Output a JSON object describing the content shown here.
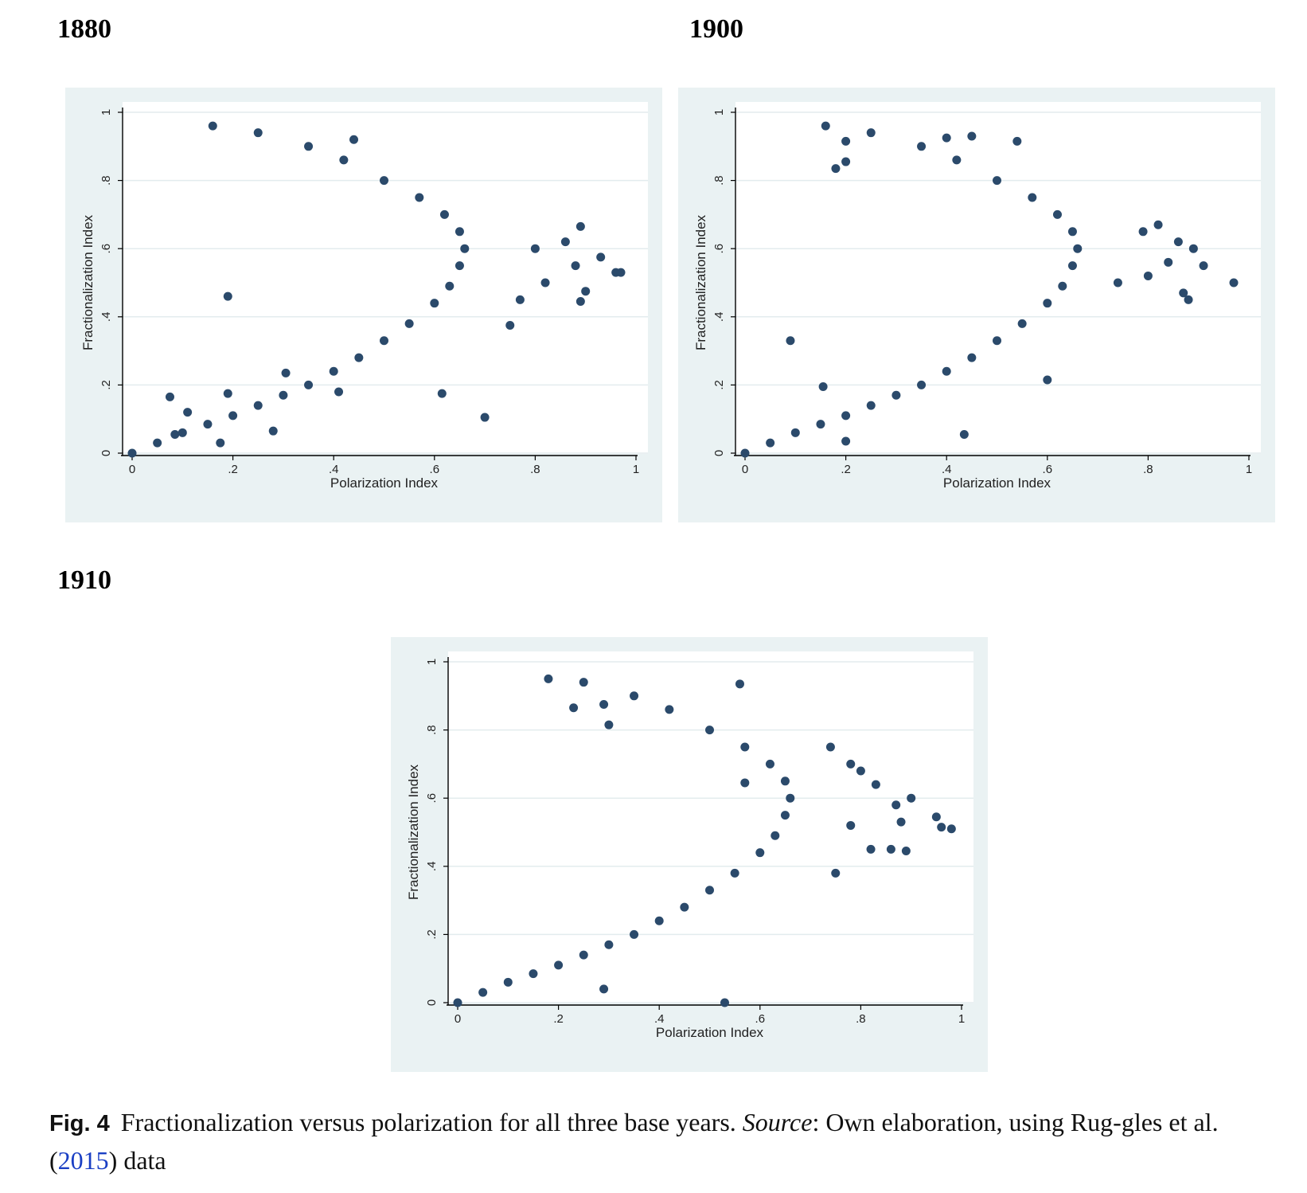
{
  "panels": [
    {
      "year_label": "1880",
      "xlabel": "Polarization Index",
      "ylabel": "Fractionalization Index"
    },
    {
      "year_label": "1900",
      "xlabel": "Polarization Index",
      "ylabel": "Fractionalization Index"
    },
    {
      "year_label": "1910",
      "xlabel": "Polarization Index",
      "ylabel": "Fractionalization Index"
    }
  ],
  "caption": {
    "fig_label": "Fig. 4",
    "text_before": "Fractionalization versus polarization for all three base years. ",
    "source_word": "Source",
    "text_middle": ": Own elaboration, using Rug-gles et al. (",
    "cite_year": "2015",
    "text_after": ") data"
  },
  "colors": {
    "marker": "#2b4a6b",
    "panel_background": "#eaf2f3",
    "plot_background": "#ffffff",
    "gridline": "#e3ecee"
  },
  "chart_data": [
    {
      "type": "scatter",
      "title": "1880",
      "xlabel": "Polarization Index",
      "ylabel": "Fractionalization Index",
      "xlim": [
        0,
        1
      ],
      "ylim": [
        0,
        1
      ],
      "xticks": [
        0,
        0.2,
        0.4,
        0.6,
        0.8,
        1
      ],
      "xtick_labels": [
        "0",
        ".2",
        ".4",
        ".6",
        ".8",
        "1"
      ],
      "yticks": [
        0,
        0.2,
        0.4,
        0.6,
        0.8,
        1
      ],
      "ytick_labels": [
        "0",
        ".2",
        ".4",
        ".6",
        ".8",
        "1"
      ],
      "grid": true,
      "series": [
        {
          "values": [
            {
              "x": 0.0,
              "y": 0.0
            },
            {
              "x": 0.05,
              "y": 0.03
            },
            {
              "x": 0.1,
              "y": 0.06
            },
            {
              "x": 0.15,
              "y": 0.085
            },
            {
              "x": 0.2,
              "y": 0.11
            },
            {
              "x": 0.25,
              "y": 0.14
            },
            {
              "x": 0.3,
              "y": 0.17
            },
            {
              "x": 0.35,
              "y": 0.2
            },
            {
              "x": 0.4,
              "y": 0.24
            },
            {
              "x": 0.45,
              "y": 0.28
            },
            {
              "x": 0.5,
              "y": 0.33
            },
            {
              "x": 0.55,
              "y": 0.38
            },
            {
              "x": 0.6,
              "y": 0.44
            },
            {
              "x": 0.63,
              "y": 0.49
            },
            {
              "x": 0.65,
              "y": 0.55
            },
            {
              "x": 0.66,
              "y": 0.6
            },
            {
              "x": 0.65,
              "y": 0.65
            },
            {
              "x": 0.62,
              "y": 0.7
            },
            {
              "x": 0.57,
              "y": 0.75
            },
            {
              "x": 0.5,
              "y": 0.8
            },
            {
              "x": 0.42,
              "y": 0.86
            },
            {
              "x": 0.35,
              "y": 0.9
            },
            {
              "x": 0.25,
              "y": 0.94
            },
            {
              "x": 0.16,
              "y": 0.96
            },
            {
              "x": 0.44,
              "y": 0.92
            },
            {
              "x": 0.19,
              "y": 0.46
            },
            {
              "x": 0.075,
              "y": 0.165
            },
            {
              "x": 0.19,
              "y": 0.175
            },
            {
              "x": 0.11,
              "y": 0.12
            },
            {
              "x": 0.085,
              "y": 0.055
            },
            {
              "x": 0.175,
              "y": 0.03
            },
            {
              "x": 0.28,
              "y": 0.065
            },
            {
              "x": 0.305,
              "y": 0.235
            },
            {
              "x": 0.41,
              "y": 0.18
            },
            {
              "x": 0.615,
              "y": 0.175
            },
            {
              "x": 0.7,
              "y": 0.105
            },
            {
              "x": 0.75,
              "y": 0.375
            },
            {
              "x": 0.77,
              "y": 0.45
            },
            {
              "x": 0.8,
              "y": 0.6
            },
            {
              "x": 0.89,
              "y": 0.665
            },
            {
              "x": 0.88,
              "y": 0.55
            },
            {
              "x": 0.9,
              "y": 0.475
            },
            {
              "x": 0.89,
              "y": 0.445
            },
            {
              "x": 0.93,
              "y": 0.575
            },
            {
              "x": 0.96,
              "y": 0.53
            },
            {
              "x": 0.97,
              "y": 0.53
            },
            {
              "x": 0.82,
              "y": 0.5
            },
            {
              "x": 0.86,
              "y": 0.62
            }
          ]
        }
      ]
    },
    {
      "type": "scatter",
      "title": "1900",
      "xlabel": "Polarization Index",
      "ylabel": "Fractionalization Index",
      "xlim": [
        0,
        1
      ],
      "ylim": [
        0,
        1
      ],
      "xticks": [
        0,
        0.2,
        0.4,
        0.6,
        0.8,
        1
      ],
      "xtick_labels": [
        "0",
        ".2",
        ".4",
        ".6",
        ".8",
        "1"
      ],
      "yticks": [
        0,
        0.2,
        0.4,
        0.6,
        0.8,
        1
      ],
      "ytick_labels": [
        "0",
        ".2",
        ".4",
        ".6",
        ".8",
        "1"
      ],
      "grid": true,
      "series": [
        {
          "values": [
            {
              "x": 0.0,
              "y": 0.0
            },
            {
              "x": 0.05,
              "y": 0.03
            },
            {
              "x": 0.1,
              "y": 0.06
            },
            {
              "x": 0.15,
              "y": 0.085
            },
            {
              "x": 0.2,
              "y": 0.11
            },
            {
              "x": 0.25,
              "y": 0.14
            },
            {
              "x": 0.3,
              "y": 0.17
            },
            {
              "x": 0.35,
              "y": 0.2
            },
            {
              "x": 0.4,
              "y": 0.24
            },
            {
              "x": 0.45,
              "y": 0.28
            },
            {
              "x": 0.5,
              "y": 0.33
            },
            {
              "x": 0.55,
              "y": 0.38
            },
            {
              "x": 0.6,
              "y": 0.44
            },
            {
              "x": 0.63,
              "y": 0.49
            },
            {
              "x": 0.65,
              "y": 0.55
            },
            {
              "x": 0.66,
              "y": 0.6
            },
            {
              "x": 0.65,
              "y": 0.65
            },
            {
              "x": 0.62,
              "y": 0.7
            },
            {
              "x": 0.57,
              "y": 0.75
            },
            {
              "x": 0.5,
              "y": 0.8
            },
            {
              "x": 0.42,
              "y": 0.86
            },
            {
              "x": 0.35,
              "y": 0.9
            },
            {
              "x": 0.25,
              "y": 0.94
            },
            {
              "x": 0.16,
              "y": 0.96
            },
            {
              "x": 0.4,
              "y": 0.925
            },
            {
              "x": 0.45,
              "y": 0.93
            },
            {
              "x": 0.54,
              "y": 0.915
            },
            {
              "x": 0.2,
              "y": 0.915
            },
            {
              "x": 0.2,
              "y": 0.855
            },
            {
              "x": 0.18,
              "y": 0.835
            },
            {
              "x": 0.09,
              "y": 0.33
            },
            {
              "x": 0.155,
              "y": 0.195
            },
            {
              "x": 0.2,
              "y": 0.035
            },
            {
              "x": 0.435,
              "y": 0.055
            },
            {
              "x": 0.6,
              "y": 0.215
            },
            {
              "x": 0.74,
              "y": 0.5
            },
            {
              "x": 0.79,
              "y": 0.65
            },
            {
              "x": 0.82,
              "y": 0.67
            },
            {
              "x": 0.86,
              "y": 0.62
            },
            {
              "x": 0.87,
              "y": 0.47
            },
            {
              "x": 0.88,
              "y": 0.45
            },
            {
              "x": 0.89,
              "y": 0.6
            },
            {
              "x": 0.91,
              "y": 0.55
            },
            {
              "x": 0.97,
              "y": 0.5
            },
            {
              "x": 0.84,
              "y": 0.56
            },
            {
              "x": 0.8,
              "y": 0.52
            }
          ]
        }
      ]
    },
    {
      "type": "scatter",
      "title": "1910",
      "xlabel": "Polarization Index",
      "ylabel": "Fractionalization Index",
      "xlim": [
        0,
        1
      ],
      "ylim": [
        0,
        1
      ],
      "xticks": [
        0,
        0.2,
        0.4,
        0.6,
        0.8,
        1
      ],
      "xtick_labels": [
        "0",
        ".2",
        ".4",
        ".6",
        ".8",
        "1"
      ],
      "yticks": [
        0,
        0.2,
        0.4,
        0.6,
        0.8,
        1
      ],
      "ytick_labels": [
        "0",
        ".2",
        ".4",
        ".6",
        ".8",
        "1"
      ],
      "grid": true,
      "series": [
        {
          "values": [
            {
              "x": 0.0,
              "y": 0.0
            },
            {
              "x": 0.05,
              "y": 0.03
            },
            {
              "x": 0.1,
              "y": 0.06
            },
            {
              "x": 0.15,
              "y": 0.085
            },
            {
              "x": 0.2,
              "y": 0.11
            },
            {
              "x": 0.25,
              "y": 0.14
            },
            {
              "x": 0.3,
              "y": 0.17
            },
            {
              "x": 0.35,
              "y": 0.2
            },
            {
              "x": 0.4,
              "y": 0.24
            },
            {
              "x": 0.45,
              "y": 0.28
            },
            {
              "x": 0.5,
              "y": 0.33
            },
            {
              "x": 0.55,
              "y": 0.38
            },
            {
              "x": 0.6,
              "y": 0.44
            },
            {
              "x": 0.63,
              "y": 0.49
            },
            {
              "x": 0.65,
              "y": 0.55
            },
            {
              "x": 0.66,
              "y": 0.6
            },
            {
              "x": 0.65,
              "y": 0.65
            },
            {
              "x": 0.62,
              "y": 0.7
            },
            {
              "x": 0.57,
              "y": 0.75
            },
            {
              "x": 0.5,
              "y": 0.8
            },
            {
              "x": 0.42,
              "y": 0.86
            },
            {
              "x": 0.35,
              "y": 0.9
            },
            {
              "x": 0.25,
              "y": 0.94
            },
            {
              "x": 0.18,
              "y": 0.95
            },
            {
              "x": 0.56,
              "y": 0.935
            },
            {
              "x": 0.23,
              "y": 0.865
            },
            {
              "x": 0.29,
              "y": 0.875
            },
            {
              "x": 0.3,
              "y": 0.815
            },
            {
              "x": 0.57,
              "y": 0.645
            },
            {
              "x": 0.29,
              "y": 0.04
            },
            {
              "x": 0.53,
              "y": 0.0
            },
            {
              "x": 0.74,
              "y": 0.75
            },
            {
              "x": 0.78,
              "y": 0.7
            },
            {
              "x": 0.8,
              "y": 0.68
            },
            {
              "x": 0.83,
              "y": 0.64
            },
            {
              "x": 0.87,
              "y": 0.58
            },
            {
              "x": 0.9,
              "y": 0.6
            },
            {
              "x": 0.88,
              "y": 0.53
            },
            {
              "x": 0.86,
              "y": 0.45
            },
            {
              "x": 0.89,
              "y": 0.445
            },
            {
              "x": 0.95,
              "y": 0.545
            },
            {
              "x": 0.98,
              "y": 0.51
            },
            {
              "x": 0.96,
              "y": 0.515
            },
            {
              "x": 0.75,
              "y": 0.38
            },
            {
              "x": 0.82,
              "y": 0.45
            },
            {
              "x": 0.78,
              "y": 0.52
            }
          ]
        }
      ]
    }
  ]
}
